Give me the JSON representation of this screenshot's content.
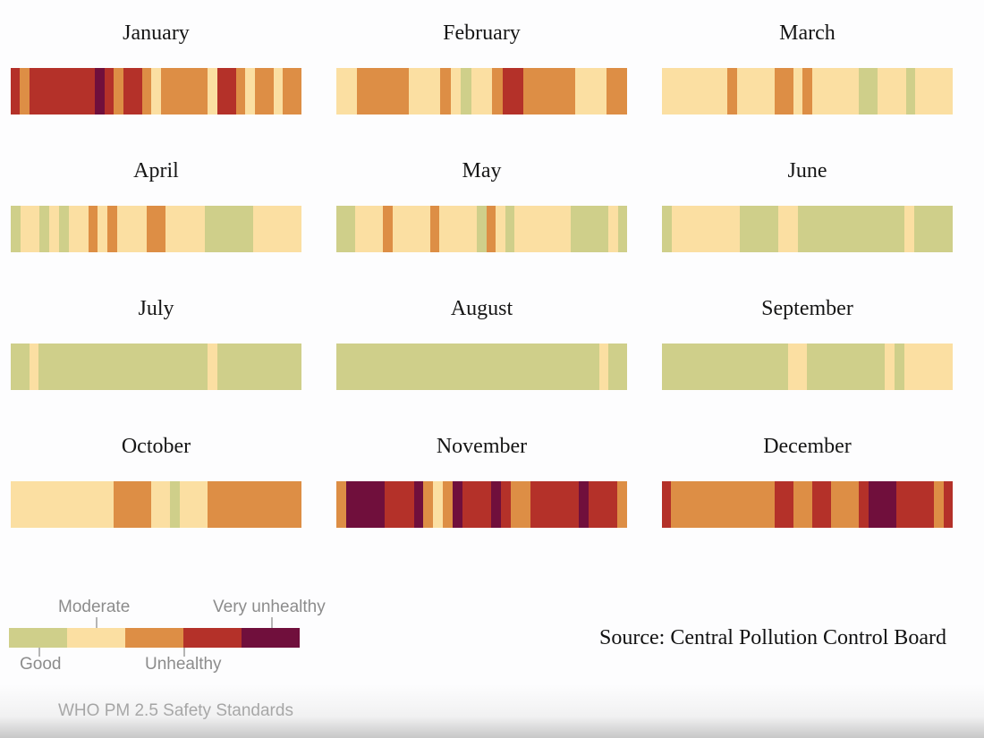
{
  "chart_data": {
    "type": "heatmap",
    "description": "Daily PM 2.5 air quality category strips, one horizontal strip per month, each segment is one day",
    "code_meanings": {
      "G": "Good",
      "M": "Moderate",
      "UO": "Unhealthy (orange shade)",
      "UR": "Unhealthy (red shade)",
      "VU": "Very unhealthy"
    },
    "months": [
      {
        "name": "January",
        "days": [
          "UR",
          "UO",
          "UR",
          "UR",
          "UR",
          "UR",
          "UR",
          "UR",
          "UR",
          "VU",
          "UR",
          "UO",
          "UR",
          "UR",
          "UO",
          "M",
          "UO",
          "UO",
          "UO",
          "UO",
          "UO",
          "M",
          "UR",
          "UR",
          "UO",
          "M",
          "UO",
          "UO",
          "M",
          "UO",
          "UO"
        ]
      },
      {
        "name": "February",
        "days": [
          "M",
          "M",
          "UO",
          "UO",
          "UO",
          "UO",
          "UO",
          "M",
          "M",
          "M",
          "UO",
          "M",
          "G",
          "M",
          "M",
          "UO",
          "UR",
          "UR",
          "UO",
          "UO",
          "UO",
          "UO",
          "UO",
          "M",
          "M",
          "M",
          "UO",
          "UO"
        ]
      },
      {
        "name": "March",
        "days": [
          "M",
          "M",
          "M",
          "M",
          "M",
          "M",
          "M",
          "UO",
          "M",
          "M",
          "M",
          "M",
          "UO",
          "UO",
          "M",
          "UO",
          "M",
          "M",
          "M",
          "M",
          "M",
          "G",
          "G",
          "M",
          "M",
          "M",
          "G",
          "M",
          "M",
          "M",
          "M"
        ]
      },
      {
        "name": "April",
        "days": [
          "G",
          "M",
          "M",
          "G",
          "M",
          "G",
          "M",
          "M",
          "UO",
          "M",
          "UO",
          "M",
          "M",
          "M",
          "UO",
          "UO",
          "M",
          "M",
          "M",
          "M",
          "G",
          "G",
          "G",
          "G",
          "G",
          "M",
          "M",
          "M",
          "M",
          "M"
        ]
      },
      {
        "name": "May",
        "days": [
          "G",
          "G",
          "M",
          "M",
          "M",
          "UO",
          "M",
          "M",
          "M",
          "M",
          "UO",
          "M",
          "M",
          "M",
          "M",
          "G",
          "UO",
          "M",
          "G",
          "M",
          "M",
          "M",
          "M",
          "M",
          "M",
          "G",
          "G",
          "G",
          "G",
          "M",
          "G"
        ]
      },
      {
        "name": "June",
        "days": [
          "G",
          "M",
          "M",
          "M",
          "M",
          "M",
          "M",
          "M",
          "G",
          "G",
          "G",
          "G",
          "M",
          "M",
          "G",
          "G",
          "G",
          "G",
          "G",
          "G",
          "G",
          "G",
          "G",
          "G",
          "G",
          "M",
          "G",
          "G",
          "G",
          "G"
        ]
      },
      {
        "name": "July",
        "days": [
          "G",
          "G",
          "M",
          "G",
          "G",
          "G",
          "G",
          "G",
          "G",
          "G",
          "G",
          "G",
          "G",
          "G",
          "G",
          "G",
          "G",
          "G",
          "G",
          "G",
          "G",
          "M",
          "G",
          "G",
          "G",
          "G",
          "G",
          "G",
          "G",
          "G",
          "G"
        ]
      },
      {
        "name": "August",
        "days": [
          "G",
          "G",
          "G",
          "G",
          "G",
          "G",
          "G",
          "G",
          "G",
          "G",
          "G",
          "G",
          "G",
          "G",
          "G",
          "G",
          "G",
          "G",
          "G",
          "G",
          "G",
          "G",
          "G",
          "G",
          "G",
          "G",
          "G",
          "G",
          "M",
          "G",
          "G"
        ]
      },
      {
        "name": "September",
        "days": [
          "G",
          "G",
          "G",
          "G",
          "G",
          "G",
          "G",
          "G",
          "G",
          "G",
          "G",
          "G",
          "G",
          "M",
          "M",
          "G",
          "G",
          "G",
          "G",
          "G",
          "G",
          "G",
          "G",
          "M",
          "G",
          "M",
          "M",
          "M",
          "M",
          "M"
        ]
      },
      {
        "name": "October",
        "days": [
          "M",
          "M",
          "M",
          "M",
          "M",
          "M",
          "M",
          "M",
          "M",
          "M",
          "M",
          "UO",
          "UO",
          "UO",
          "UO",
          "M",
          "M",
          "G",
          "M",
          "M",
          "M",
          "UO",
          "UO",
          "UO",
          "UO",
          "UO",
          "UO",
          "UO",
          "UO",
          "UO",
          "UO"
        ]
      },
      {
        "name": "November",
        "days": [
          "UO",
          "VU",
          "VU",
          "VU",
          "VU",
          "UR",
          "UR",
          "UR",
          "VU",
          "UO",
          "M",
          "UO",
          "VU",
          "UR",
          "UR",
          "UR",
          "VU",
          "UR",
          "UO",
          "UO",
          "UR",
          "UR",
          "UR",
          "UR",
          "UR",
          "VU",
          "UR",
          "UR",
          "UR",
          "UO"
        ]
      },
      {
        "name": "December",
        "days": [
          "UR",
          "UO",
          "UO",
          "UO",
          "UO",
          "UO",
          "UO",
          "UO",
          "UO",
          "UO",
          "UO",
          "UO",
          "UR",
          "UR",
          "UO",
          "UO",
          "UR",
          "UR",
          "UO",
          "UO",
          "UO",
          "UR",
          "VU",
          "VU",
          "VU",
          "UR",
          "UR",
          "UR",
          "UR",
          "UO",
          "UR"
        ]
      }
    ]
  },
  "palette": {
    "G": "#cfcf8a",
    "M": "#fbdfa2",
    "UO": "#dd8e45",
    "UR": "#b43129",
    "VU": "#700f3c"
  },
  "legend": {
    "labels": {
      "good": "Good",
      "moderate": "Moderate",
      "unhealthy": "Unhealthy",
      "very_unhealthy": "Very unhealthy"
    },
    "swatch_order": [
      "G",
      "M",
      "UO",
      "UR",
      "VU"
    ],
    "caption": "WHO PM 2.5 Safety Standards"
  },
  "source_text": "Source: Central Pollution Control Board"
}
